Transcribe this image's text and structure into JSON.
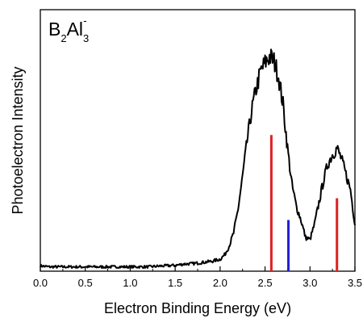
{
  "chart_data": {
    "type": "line",
    "title": {
      "parts": [
        {
          "text": "B",
          "pos": "normal"
        },
        {
          "text": "2",
          "pos": "sub"
        },
        {
          "text": "Al",
          "pos": "normal"
        },
        {
          "text": "3",
          "pos": "sub"
        },
        {
          "text": "-",
          "pos": "sup"
        }
      ]
    },
    "xlabel": "Electron Binding Energy (eV)",
    "ylabel": "Photoelectron Intensity",
    "xlim": [
      0.0,
      3.5
    ],
    "ylim": [
      0,
      1.0
    ],
    "x_ticks": [
      "0.0",
      "0.5",
      "1.0",
      "1.5",
      "2.0",
      "2.5",
      "3.0",
      "3.5"
    ],
    "y_ticks_labeled": false,
    "grid": false,
    "legend": "none",
    "series": [
      {
        "color": "#000000",
        "x": [
          0.0,
          0.1,
          0.2,
          0.3,
          0.4,
          0.5,
          0.6,
          0.7,
          0.8,
          0.9,
          1.0,
          1.1,
          1.2,
          1.3,
          1.4,
          1.5,
          1.6,
          1.7,
          1.8,
          1.9,
          2.0,
          2.05,
          2.1,
          2.15,
          2.2,
          2.25,
          2.3,
          2.35,
          2.4,
          2.45,
          2.5,
          2.55,
          2.6,
          2.65,
          2.7,
          2.75,
          2.8,
          2.85,
          2.9,
          2.95,
          3.0,
          3.05,
          3.1,
          3.15,
          3.2,
          3.25,
          3.3,
          3.35,
          3.4,
          3.45,
          3.5
        ],
        "y": [
          0.01,
          0.005,
          0.005,
          0.005,
          0.005,
          0.005,
          0.005,
          0.005,
          0.005,
          0.005,
          0.005,
          0.005,
          0.005,
          0.008,
          0.01,
          0.012,
          0.018,
          0.02,
          0.025,
          0.03,
          0.04,
          0.06,
          0.1,
          0.16,
          0.27,
          0.42,
          0.58,
          0.72,
          0.82,
          0.9,
          0.94,
          0.97,
          0.95,
          0.88,
          0.75,
          0.55,
          0.38,
          0.28,
          0.22,
          0.14,
          0.13,
          0.2,
          0.3,
          0.4,
          0.48,
          0.52,
          0.55,
          0.5,
          0.43,
          0.36,
          0.2
        ]
      }
    ],
    "stick_lines": [
      {
        "x": 2.57,
        "height": 0.61,
        "color": "#e02020"
      },
      {
        "x": 2.76,
        "height": 0.22,
        "color": "#2020d0"
      },
      {
        "x": 3.3,
        "height": 0.32,
        "color": "#e02020"
      }
    ]
  }
}
